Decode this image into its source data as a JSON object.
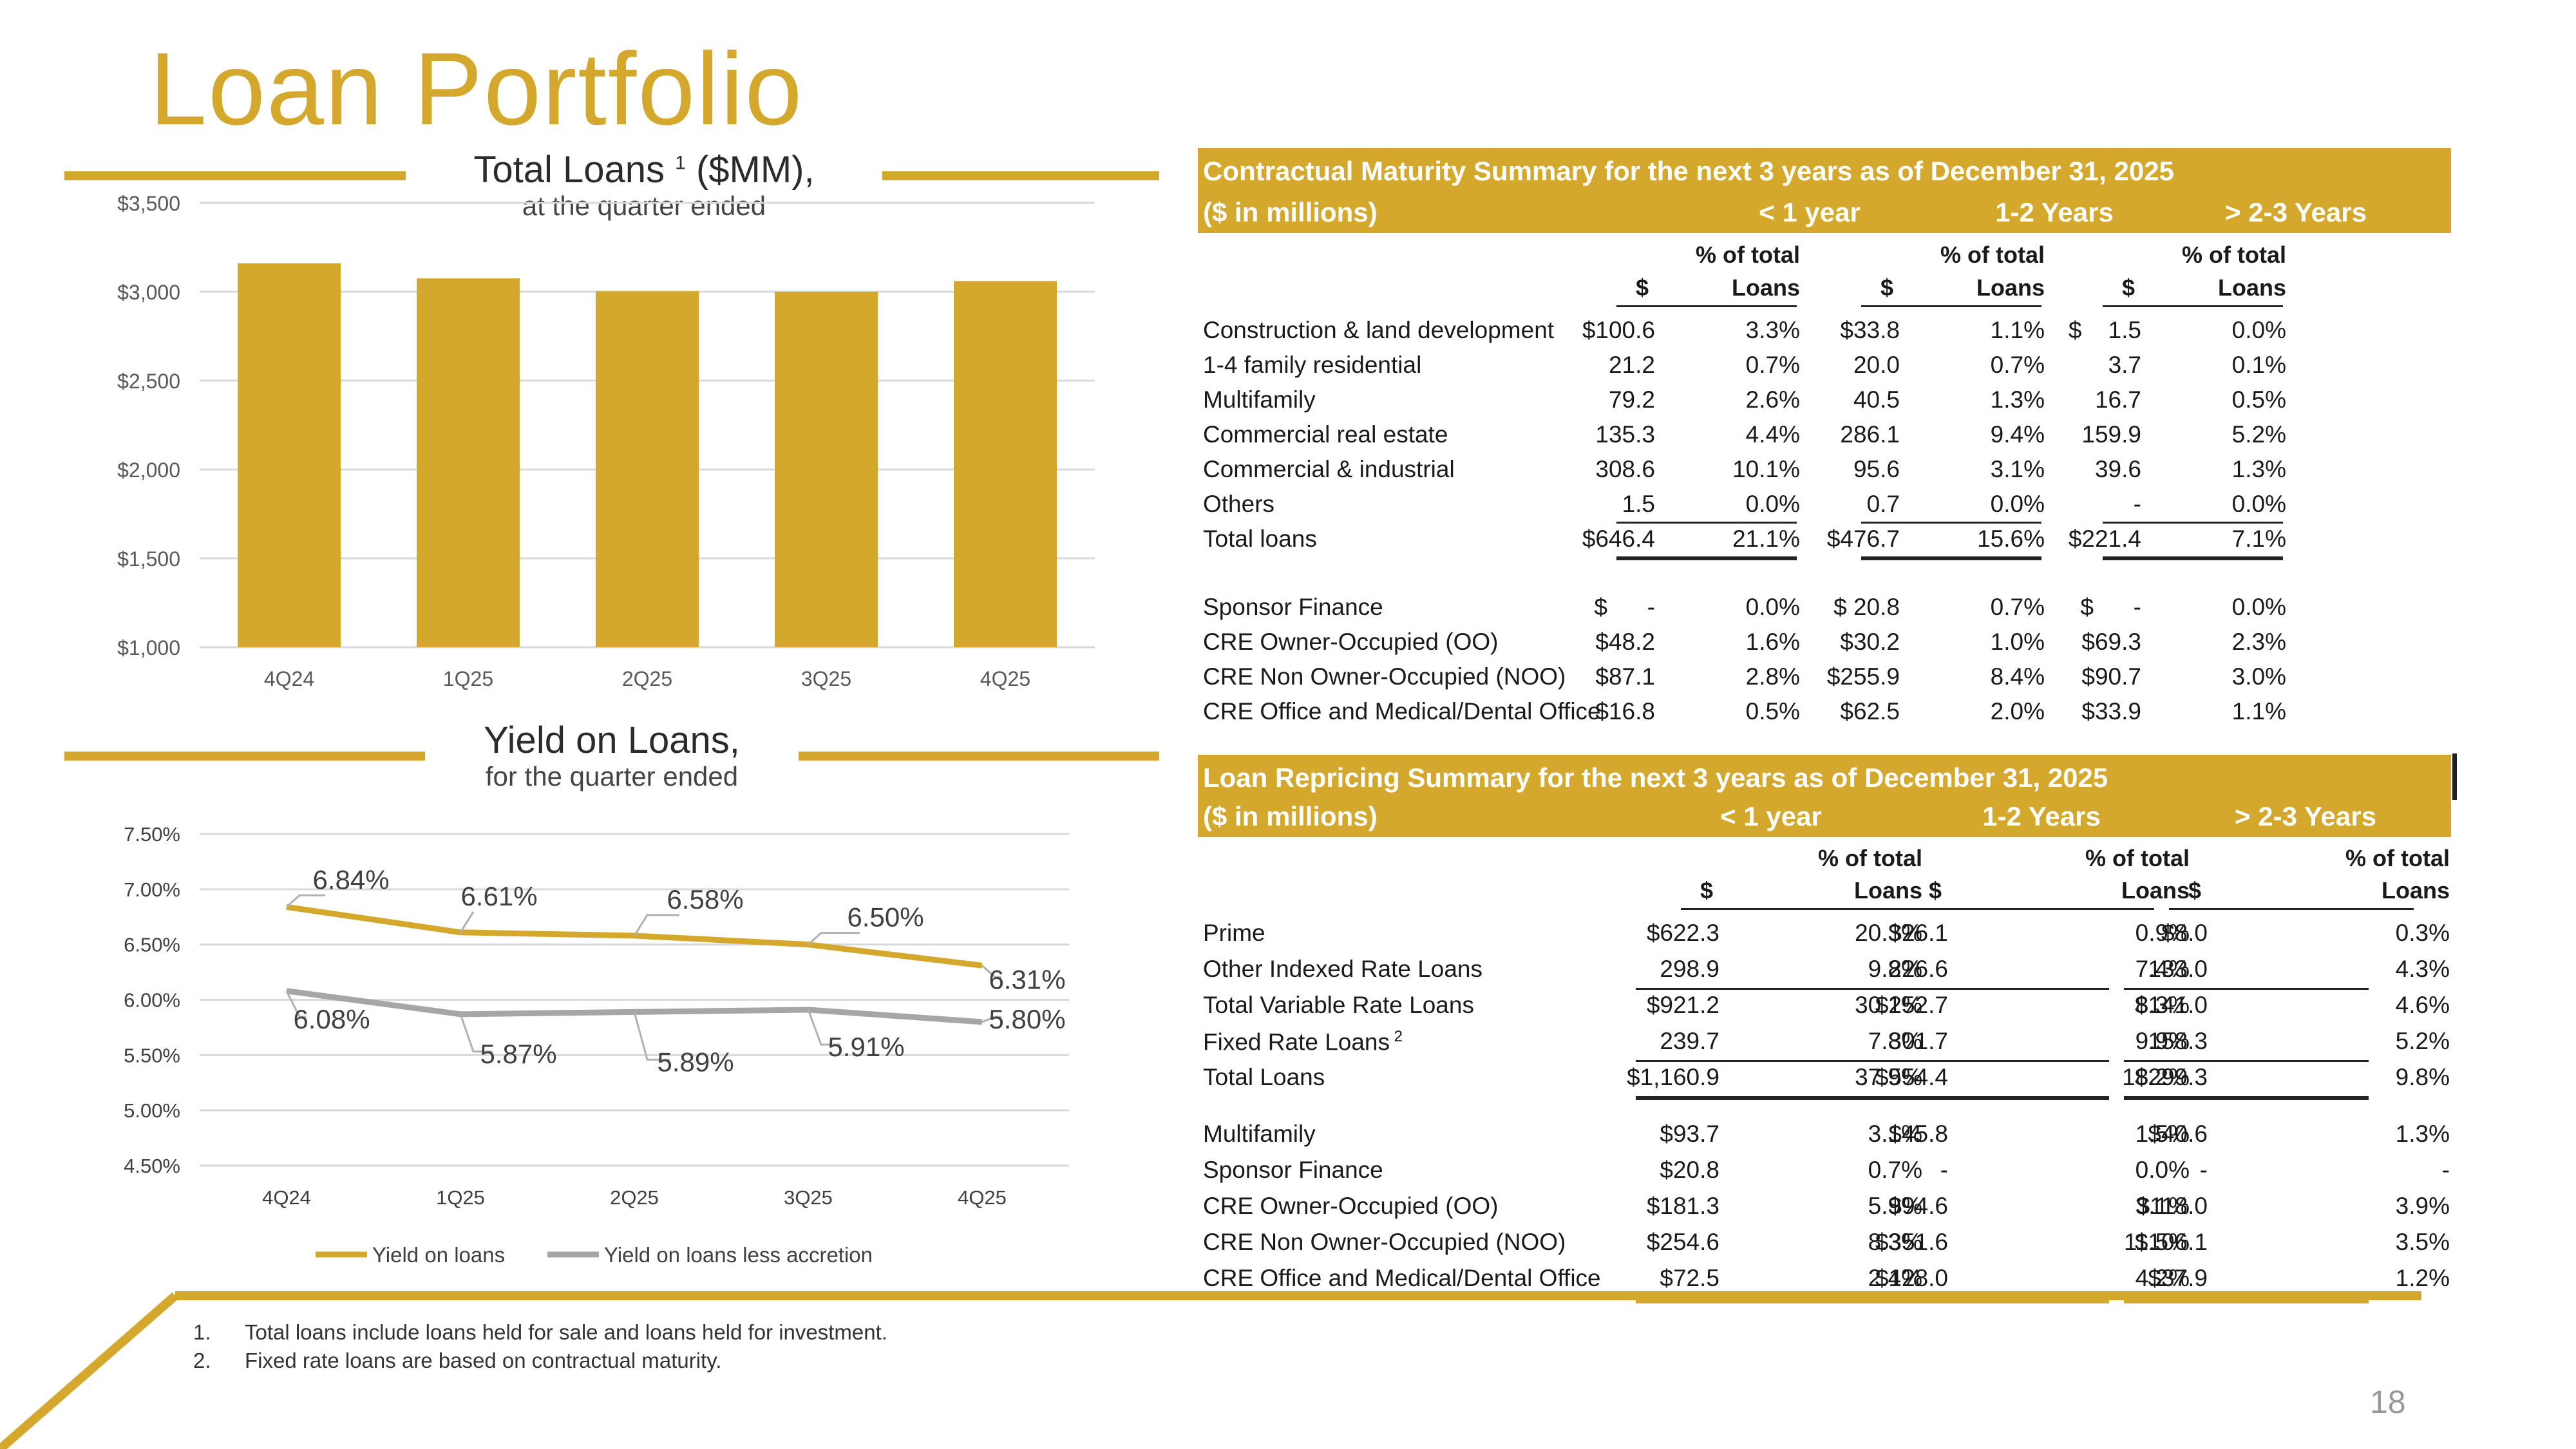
{
  "page": {
    "title": "Loan Portfolio",
    "page_number": "18"
  },
  "total_loans_chart": {
    "title": "Total Loans",
    "title_superscript": "1",
    "title_suffix": "($MM),",
    "subtitle": "at the quarter ended"
  },
  "yield_chart": {
    "title": "Yield on Loans,",
    "subtitle": "for the quarter ended"
  },
  "chart_data": [
    {
      "type": "bar",
      "title": "Total Loans 1 ($MM), at the quarter ended",
      "categories": [
        "4Q24",
        "1Q25",
        "2Q25",
        "3Q25",
        "4Q25"
      ],
      "values": [
        3160,
        3075,
        3003,
        3000,
        3060
      ],
      "ylim": [
        1000,
        3500
      ],
      "yticks": [
        "$1,000",
        "$1,500",
        "$2,000",
        "$2,500",
        "$3,000",
        "$3,500"
      ],
      "ytick_values": [
        1000,
        1500,
        2000,
        2500,
        3000,
        3500
      ],
      "color": "#D4A82C"
    },
    {
      "type": "line",
      "title": "Yield on Loans, for the quarter ended",
      "categories": [
        "4Q24",
        "1Q25",
        "2Q25",
        "3Q25",
        "4Q25"
      ],
      "ylim": [
        4.5,
        7.5
      ],
      "yticks": [
        "4.50%",
        "5.00%",
        "5.50%",
        "6.00%",
        "6.50%",
        "7.00%",
        "7.50%"
      ],
      "ytick_values": [
        4.5,
        5.0,
        5.5,
        6.0,
        6.5,
        7.0,
        7.5
      ],
      "series": [
        {
          "name": "Yield on loans",
          "values": [
            6.84,
            6.61,
            6.58,
            6.5,
            6.31
          ],
          "labels": [
            "6.84%",
            "6.61%",
            "6.58%",
            "6.50%",
            "6.31%"
          ],
          "color": "#D4A82C"
        },
        {
          "name": "Yield on loans less accretion",
          "values": [
            6.08,
            5.87,
            5.89,
            5.91,
            5.8
          ],
          "labels": [
            "6.08%",
            "5.87%",
            "5.89%",
            "5.91%",
            "5.80%"
          ],
          "color": "#A6A6A6"
        }
      ],
      "legend": "bottom"
    }
  ],
  "maturity_table": {
    "title": "Contractual Maturity Summary for the next 3 years as of December 31, 2025",
    "units": "($ in millions)",
    "groups": [
      "< 1 year",
      "1-2 Years",
      "> 2-3 Years"
    ],
    "col_dollar": "$",
    "col_pct_1": "% of total",
    "col_pct_2": "Loans",
    "rows": [
      {
        "label": "Construction & land development",
        "cells": [
          "$100.6",
          "3.3%",
          "$33.8",
          "1.1%",
          "$    1.5",
          "0.0%"
        ]
      },
      {
        "label": "1-4 family residential",
        "cells": [
          "21.2",
          "0.7%",
          "20.0",
          "0.7%",
          "3.7",
          "0.1%"
        ]
      },
      {
        "label": "Multifamily",
        "cells": [
          "79.2",
          "2.6%",
          "40.5",
          "1.3%",
          "16.7",
          "0.5%"
        ]
      },
      {
        "label": "Commercial real estate",
        "cells": [
          "135.3",
          "4.4%",
          "286.1",
          "9.4%",
          "159.9",
          "5.2%"
        ]
      },
      {
        "label": "Commercial & industrial",
        "cells": [
          "308.6",
          "10.1%",
          "95.6",
          "3.1%",
          "39.6",
          "1.3%"
        ]
      },
      {
        "label": "Others",
        "cells": [
          "1.5",
          "0.0%",
          "0.7",
          "0.0%",
          "-",
          "0.0%"
        ]
      },
      {
        "label": "Total loans",
        "cells": [
          "$646.4",
          "21.1%",
          "$476.7",
          "15.6%",
          "$221.4",
          "7.1%"
        ]
      },
      {
        "label": "Sponsor Finance",
        "cells": [
          "$      -",
          "0.0%",
          "$ 20.8",
          "0.7%",
          "$      -",
          "0.0%"
        ]
      },
      {
        "label": "CRE Owner-Occupied (OO)",
        "cells": [
          "$48.2",
          "1.6%",
          "$30.2",
          "1.0%",
          "$69.3",
          "2.3%"
        ]
      },
      {
        "label": "CRE Non Owner-Occupied (NOO)",
        "cells": [
          "$87.1",
          "2.8%",
          "$255.9",
          "8.4%",
          "$90.7",
          "3.0%"
        ]
      },
      {
        "label": "CRE Office and Medical/Dental Office",
        "cells": [
          "$16.8",
          "0.5%",
          "$62.5",
          "2.0%",
          "$33.9",
          "1.1%"
        ]
      }
    ]
  },
  "repricing_table": {
    "title": "Loan Repricing Summary for the next 3 years as of December 31, 2025",
    "units": "($ in millions)",
    "groups": [
      "< 1 year",
      "1-2 Years",
      "> 2-3 Years"
    ],
    "col_dollar": "$",
    "col_pct_1": "% of total",
    "col_pct_2": "Loans",
    "fixed_superscript": "2",
    "rows": [
      {
        "label": "Prime",
        "cells": [
          "$622.3",
          "20.3%",
          "$26.1",
          "0.9%",
          "$8.0",
          "0.3%"
        ]
      },
      {
        "label": "Other Indexed Rate Loans",
        "cells": [
          "298.9",
          "9.8%",
          "226.6",
          "7.4%",
          "133.0",
          "4.3%"
        ]
      },
      {
        "label": "Total Variable Rate Loans",
        "cells": [
          "$921.2",
          "30.1%",
          "$252.7",
          "8.3%",
          "$141.0",
          "4.6%"
        ]
      },
      {
        "label": "Fixed Rate Loans",
        "cells": [
          "239.7",
          "7.8%",
          "301.7",
          "9.9%",
          "158.3",
          "5.2%"
        ]
      },
      {
        "label": "Total Loans",
        "cells": [
          "$1,160.9",
          "37.9%",
          "$554.4",
          "18.2%",
          "$299.3",
          "9.8%"
        ]
      },
      {
        "label": "Multifamily",
        "cells": [
          "$93.7",
          "3.1%",
          "$45.8",
          "1.5%",
          "$40.6",
          "1.3%"
        ]
      },
      {
        "label": "Sponsor Finance",
        "cells": [
          "$20.8",
          "0.7%",
          "-",
          "0.0%",
          "-",
          "-"
        ]
      },
      {
        "label": "CRE Owner-Occupied (OO)",
        "cells": [
          "$181.3",
          "5.9%",
          "$94.6",
          "3.1%",
          "$118.0",
          "3.9%"
        ]
      },
      {
        "label": "CRE Non Owner-Occupied (NOO)",
        "cells": [
          "$254.6",
          "8.3%",
          "$351.6",
          "11.5%",
          "$106.1",
          "3.5%"
        ]
      },
      {
        "label": "CRE Office and Medical/Dental Office",
        "cells": [
          "$72.5",
          "2.4%",
          "$128.0",
          "4.2%",
          "$37.9",
          "1.2%"
        ]
      }
    ]
  },
  "footnotes": [
    {
      "num": "1.",
      "text": "Total loans include loans held for sale and loans held for investment."
    },
    {
      "num": "2.",
      "text": "Fixed rate loans are based on contractual maturity."
    }
  ],
  "colors": {
    "accent": "#D4A82C",
    "gray_series": "#A6A6A6"
  }
}
